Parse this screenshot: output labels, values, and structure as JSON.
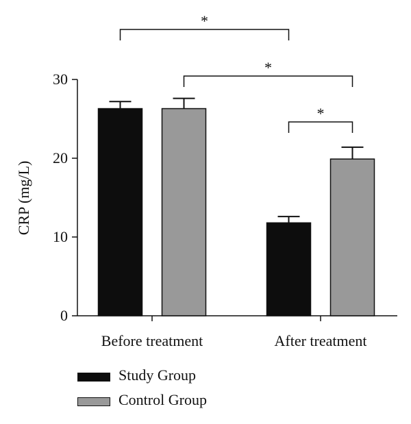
{
  "chart_data": {
    "type": "bar",
    "categories": [
      "Before treatment",
      "After treatment"
    ],
    "series": [
      {
        "name": "Study Group",
        "values": [
          26.3,
          11.8
        ],
        "errors": [
          0.9,
          0.8
        ],
        "color": "#0d0d0d"
      },
      {
        "name": "Control Group",
        "values": [
          26.3,
          19.9
        ],
        "errors": [
          1.3,
          1.5
        ],
        "color": "#999999"
      }
    ],
    "ylabel": "CRP (mg/L)",
    "xlabel": "",
    "ylim": [
      0,
      30
    ],
    "yticks": [
      0,
      10,
      20,
      30
    ],
    "legend": "bottom-left",
    "significance": [
      {
        "from": "Before treatment / Study Group",
        "to": "After treatment / Study Group",
        "label": "*"
      },
      {
        "from": "Before treatment / Control Group",
        "to": "After treatment / Control Group",
        "label": "*"
      },
      {
        "from": "After treatment / Study Group",
        "to": "After treatment / Control Group",
        "label": "*"
      }
    ]
  }
}
